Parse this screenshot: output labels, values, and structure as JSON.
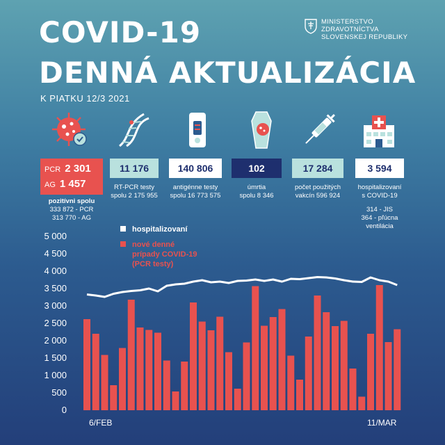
{
  "header": {
    "title_line1": "COVID-19",
    "title_line2": "DENNÁ AKTUALIZÁCIA",
    "date": "K PIATKU 12/3 2021",
    "ministry_line1": "MINISTERSTVO",
    "ministry_line2": "ZDRAVOTNÍCTVA",
    "ministry_line3": "SLOVENSKEJ REPUBLIKY"
  },
  "stats": {
    "pcr_label": "PCR",
    "pcr_value": "2 301",
    "ag_label": "AG",
    "ag_value": "1 457",
    "positive_l1": "pozitívni spolu",
    "positive_l2": "333 872 - PCR",
    "positive_l3": "313 770 - AG",
    "rtpcr_value": "11 176",
    "rtpcr_l1": "RT-PCR testy",
    "rtpcr_l2": "spolu 2 175 955",
    "antigen_value": "140 806",
    "antigen_l1": "antigénne testy",
    "antigen_l2": "spolu 16 773 575",
    "deaths_value": "102",
    "deaths_l1": "úmrtia",
    "deaths_l2": "spolu 8 346",
    "vaccines_value": "17 284",
    "vaccines_l1": "počet použitých",
    "vaccines_l2": "vakcín 596 924",
    "hosp_value": "3 594",
    "hosp_l1": "hospitalizovaní",
    "hosp_l2": "s COVID-19",
    "hosp_l3": "314 - JIS",
    "hosp_l4": "364 - pľúcna ventilácia"
  },
  "colors": {
    "red": "#e8524f",
    "teal": "#b9e1de",
    "navy": "#1e2f6e",
    "white": "#ffffff"
  },
  "chart_data": {
    "type": "bar+line",
    "ylim": [
      0,
      5000
    ],
    "yticks": [
      0,
      500,
      1000,
      1500,
      2000,
      2500,
      3000,
      3500,
      4000,
      4500,
      5000
    ],
    "ytick_labels": [
      "0",
      "500",
      "1 000",
      "1 500",
      "2 000",
      "2 500",
      "3 000",
      "3 500",
      "4 000",
      "4 500",
      "5 000"
    ],
    "x_start_label": "6/FEB",
    "x_end_label": "11/MAR",
    "series": [
      {
        "name": "nové denné prípady COVID-19 (PCR testy)",
        "legend_l1": "nové denné",
        "legend_l2": "prípady COVID-19",
        "legend_l3": "(PCR testy)",
        "type": "bar",
        "values": [
          2620,
          2200,
          1590,
          720,
          1790,
          3180,
          2380,
          2310,
          2230,
          1430,
          540,
          1400,
          3100,
          2550,
          2300,
          2690,
          1670,
          620,
          1950,
          3570,
          2430,
          2680,
          2910,
          1570,
          880,
          2120,
          3300,
          2820,
          2420,
          2570,
          1200,
          390,
          2200,
          3600,
          1960,
          2330
        ]
      },
      {
        "name": "hospitalizovaní",
        "type": "line",
        "values": [
          3330,
          3300,
          3260,
          3350,
          3400,
          3430,
          3450,
          3500,
          3420,
          3580,
          3620,
          3640,
          3700,
          3740,
          3680,
          3700,
          3660,
          3720,
          3730,
          3760,
          3720,
          3760,
          3700,
          3780,
          3770,
          3800,
          3830,
          3820,
          3790,
          3740,
          3700,
          3690,
          3820,
          3740,
          3700,
          3600
        ]
      }
    ]
  }
}
